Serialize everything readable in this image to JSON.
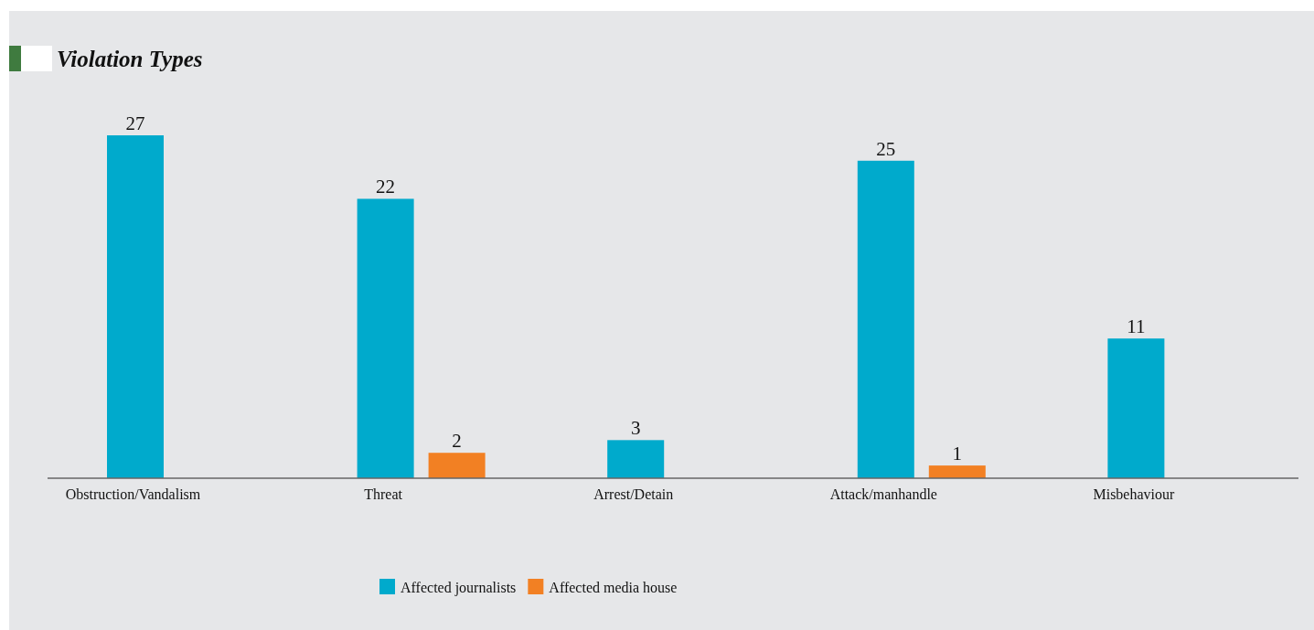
{
  "chart_data": {
    "type": "bar",
    "title": "Violation Types",
    "categories": [
      "Obstruction/Vandalism",
      "Threat",
      "Arrest/Detain",
      "Attack/manhandle",
      "Misbehaviour"
    ],
    "series": [
      {
        "name": "Affected journalists",
        "color": "#00aacc",
        "values": [
          27,
          22,
          3,
          25,
          11
        ]
      },
      {
        "name": "Affected media house",
        "color": "#f28023",
        "values": [
          null,
          2,
          null,
          1,
          null
        ]
      }
    ],
    "data_labels": true,
    "legend": "bottom",
    "grid": false
  }
}
